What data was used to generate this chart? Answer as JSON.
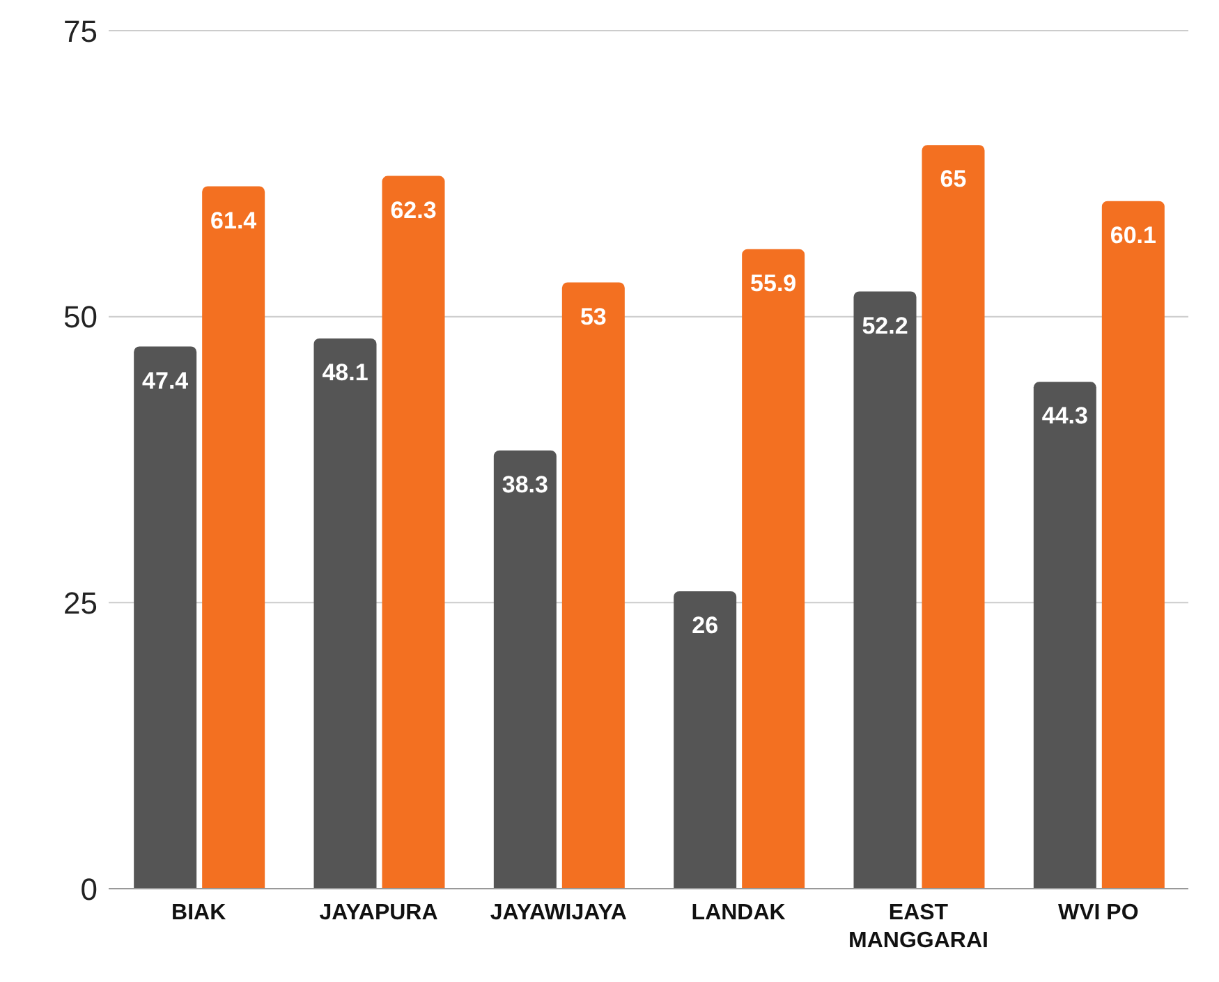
{
  "chart_data": {
    "type": "bar",
    "categories": [
      "BIAK",
      "JAYAPURA",
      "JAYAWIJAYA",
      "LANDAK",
      "EAST MANGGARAI",
      "WVI PO"
    ],
    "series": [
      {
        "color": "#555555",
        "values": [
          47.4,
          48.1,
          38.3,
          26,
          52.2,
          44.3
        ]
      },
      {
        "color": "#f37021",
        "values": [
          61.4,
          62.3,
          53,
          55.9,
          65,
          60.1
        ]
      }
    ],
    "ylim": [
      0,
      75
    ],
    "yticks": [
      0,
      25,
      50,
      75
    ],
    "grid": "y",
    "data_labels": true,
    "legend": false
  }
}
